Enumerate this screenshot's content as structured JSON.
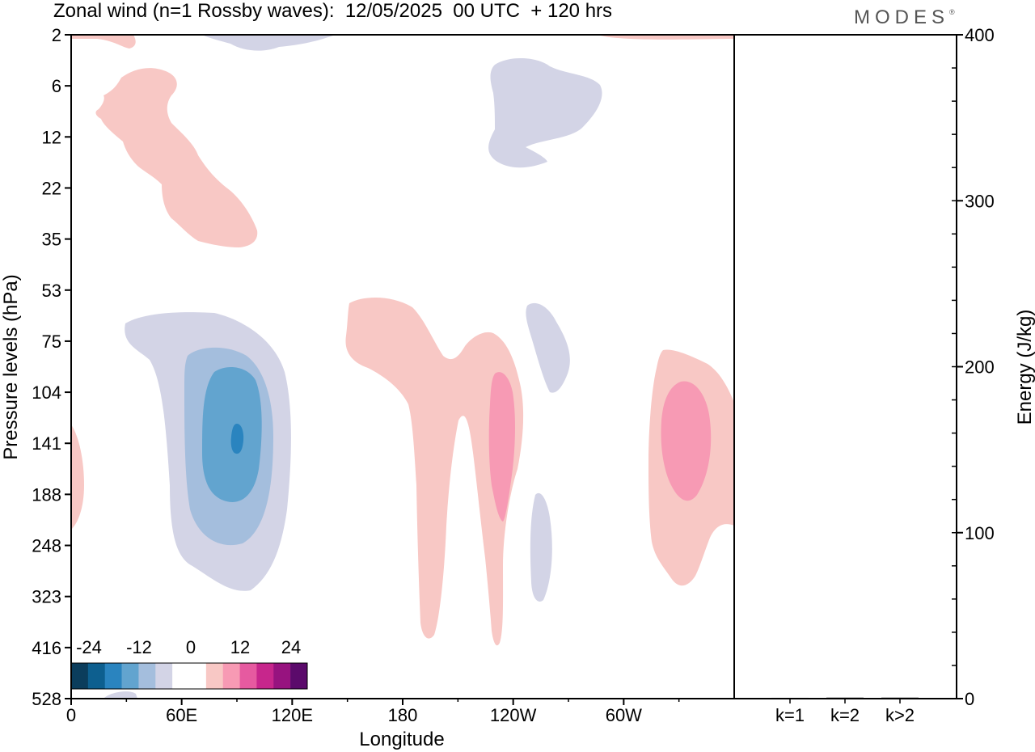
{
  "title": "Zonal wind (n=1 Rossby waves):  12/05/2025  00 UTC  + 120 hrs",
  "brand": "MODES",
  "brand_mark": "®",
  "chart_data": [
    {
      "type": "heatmap",
      "title": "Zonal wind (n=1 Rossby waves):  12/05/2025  00 UTC  + 120 hrs",
      "xlabel": "Longitude",
      "ylabel": "Pressure levels (hPa)",
      "x_ticks": [
        "0",
        "60E",
        "120E",
        "180",
        "120W",
        "60W"
      ],
      "x_tick_values_deg_east": [
        0,
        60,
        120,
        180,
        240,
        300
      ],
      "xlim_deg_east": [
        0,
        360
      ],
      "y_ticks": [
        "2",
        "6",
        "12",
        "22",
        "35",
        "53",
        "75",
        "104",
        "141",
        "188",
        "248",
        "323",
        "416",
        "528"
      ],
      "y_axis_inverted": true,
      "colorbar": {
        "ticks": [
          "-24",
          "-12",
          "0",
          "12",
          "24"
        ],
        "tick_values": [
          -24,
          -12,
          0,
          12,
          24
        ],
        "colors": [
          "#0b3d5c",
          "#0d5f8f",
          "#2a84bf",
          "#62a4cf",
          "#a4bedd",
          "#d3d4e6",
          "#ffffff",
          "#ffffff",
          "#f8c8c5",
          "#f79ab4",
          "#e65aa0",
          "#c7268c",
          "#97137f",
          "#5b0a6b"
        ],
        "level_step": 4
      },
      "features": [
        {
          "sign": "negative",
          "peak_value": -20,
          "lon_deg_east": 90,
          "pressure_hPa": 141
        },
        {
          "sign": "positive",
          "peak_value": 8,
          "lon_deg_east": 228,
          "pressure_hPa": 141
        },
        {
          "sign": "positive",
          "peak_value": 8,
          "lon_deg_east": 331,
          "pressure_hPa": 141
        },
        {
          "sign": "positive",
          "peak_value": 4,
          "lon_deg_east": 203,
          "pressure_hPa": 104
        },
        {
          "sign": "positive",
          "peak_value": 4,
          "lon_deg_east": 45,
          "pressure_hPa": 12
        },
        {
          "sign": "negative",
          "peak_value": -4,
          "lon_deg_east": 245,
          "pressure_hPa": 8
        },
        {
          "sign": "negative",
          "peak_value": -4,
          "lon_deg_east": 251,
          "pressure_hPa": 90
        },
        {
          "sign": "negative",
          "peak_value": -4,
          "lon_deg_east": 256,
          "pressure_hPa": 260
        },
        {
          "sign": "positive",
          "peak_value": 4,
          "lon_deg_east": 3,
          "pressure_hPa": 188
        }
      ]
    },
    {
      "type": "bar",
      "title": "",
      "categories": [
        "k=1",
        "k=2",
        "k>2"
      ],
      "values": [
        0.5,
        0.6,
        0.6
      ],
      "ylabel": "Energy (J/kg)",
      "ylim": [
        0,
        400
      ],
      "y_ticks": [
        "0",
        "100",
        "200",
        "300",
        "400"
      ],
      "y_tick_values": [
        0,
        100,
        200,
        300,
        400
      ],
      "y_minor_step": 20
    }
  ]
}
